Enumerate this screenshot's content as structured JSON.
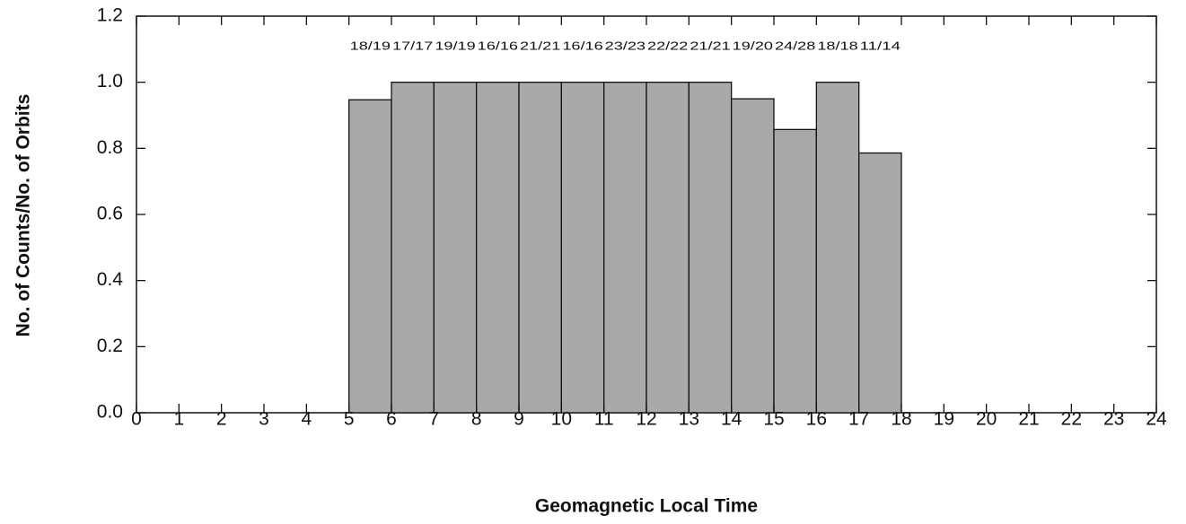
{
  "chart_data": {
    "type": "histogram",
    "xlabel": "Geomagnetic  Local  Time",
    "ylabel": "No.  of  Counts/No.  of  Orbits",
    "bins": [
      5,
      6,
      7,
      8,
      9,
      10,
      11,
      12,
      13,
      14,
      15,
      16,
      17,
      18
    ],
    "values": [
      0.947,
      1,
      1,
      1,
      1,
      1,
      1,
      1,
      1,
      0.95,
      0.857,
      1,
      0.786
    ],
    "value_labels": [
      "18/19",
      "17/17",
      "19/19",
      "16/16",
      "21/21",
      "16/16",
      "23/23",
      "22/22",
      "21/21",
      "19/20",
      "24/28",
      "18/18",
      "11/14"
    ],
    "color": "#a9a9a9",
    "xlim": [
      0,
      24
    ],
    "xticks": [
      0,
      1,
      2,
      3,
      4,
      5,
      6,
      7,
      8,
      9,
      10,
      11,
      12,
      13,
      14,
      15,
      16,
      17,
      18,
      19,
      20,
      21,
      22,
      23,
      24
    ],
    "ylim": [
      0,
      1.2
    ],
    "yticks": [
      {
        "value": 0,
        "label": "0.0"
      },
      {
        "value": 0.2,
        "label": "0.2"
      },
      {
        "value": 0.4,
        "label": "0.4"
      },
      {
        "value": 0.6,
        "label": "0.6"
      },
      {
        "value": 0.8,
        "label": "0.8"
      },
      {
        "value": 1,
        "label": "1.0"
      },
      1.2
    ]
  }
}
